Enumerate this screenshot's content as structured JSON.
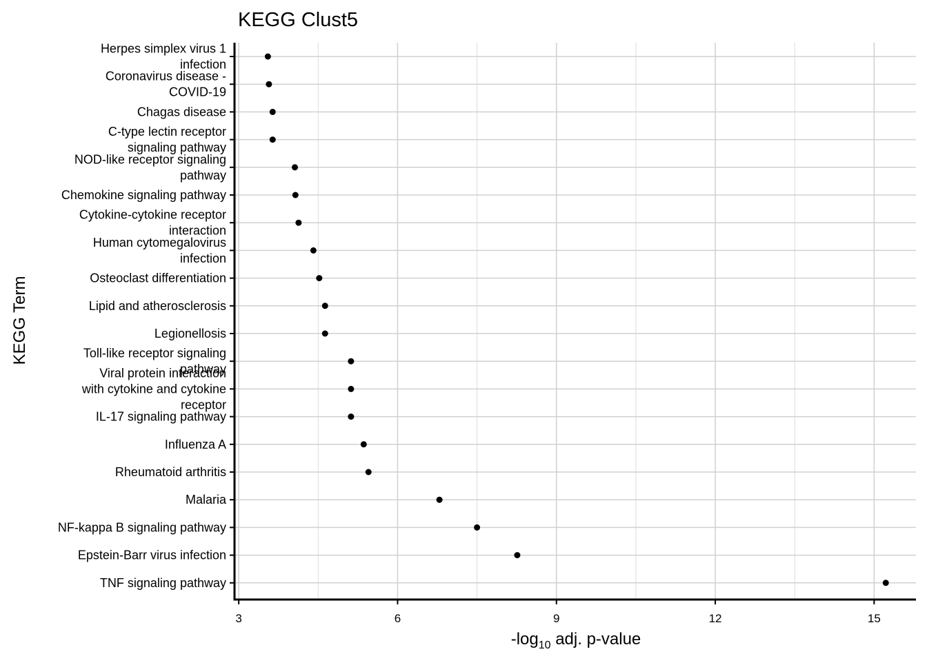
{
  "chart_data": {
    "type": "dot",
    "title": "KEGG Clust5",
    "y_label": "KEGG Term",
    "x_label": [
      "-log",
      "10",
      " adj. p-value"
    ],
    "categories": [
      [
        "Herpes simplex virus 1",
        "infection"
      ],
      [
        "Coronavirus disease -",
        "COVID-19"
      ],
      [
        "Chagas disease"
      ],
      [
        "C-type lectin receptor",
        "signaling pathway"
      ],
      [
        "NOD-like receptor signaling",
        "pathway"
      ],
      [
        "Chemokine signaling pathway"
      ],
      [
        "Cytokine-cytokine receptor",
        "interaction"
      ],
      [
        "Human cytomegalovirus",
        "infection"
      ],
      [
        "Osteoclast differentiation"
      ],
      [
        "Lipid and atherosclerosis"
      ],
      [
        "Legionellosis"
      ],
      [
        "Toll-like receptor signaling",
        "pathway"
      ],
      [
        "Viral protein interaction",
        "with cytokine and cytokine",
        "receptor"
      ],
      [
        "IL-17 signaling pathway"
      ],
      [
        "Influenza A"
      ],
      [
        "Rheumatoid arthritis"
      ],
      [
        "Malaria"
      ],
      [
        "NF-kappa B signaling pathway"
      ],
      [
        "Epstein-Barr virus infection"
      ],
      [
        "TNF signaling pathway"
      ]
    ],
    "values": [
      3.55,
      3.57,
      3.64,
      3.64,
      4.06,
      4.07,
      4.13,
      4.41,
      4.52,
      4.63,
      4.63,
      5.12,
      5.12,
      5.12,
      5.36,
      5.45,
      6.79,
      7.5,
      8.26,
      15.22
    ],
    "color": "#000000",
    "xlim": [
      2.92,
      15.79
    ],
    "xticks": [
      3,
      6,
      9,
      12,
      15
    ],
    "xminorticks": [
      4.5,
      7.5,
      10.5,
      13.5
    ],
    "grid": true
  }
}
